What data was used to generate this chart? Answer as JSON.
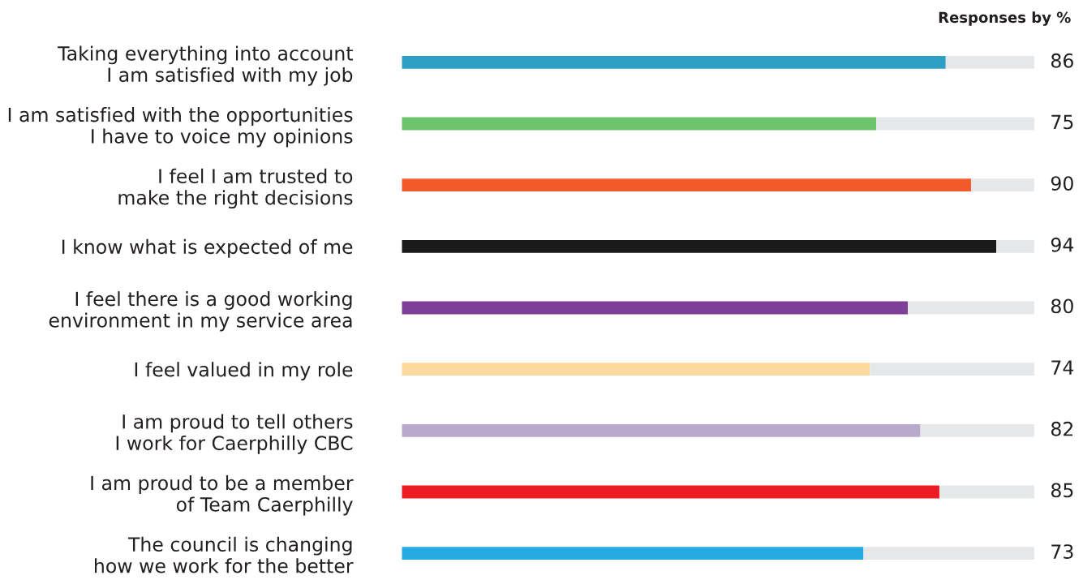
{
  "chart_data": {
    "type": "bar",
    "orientation": "horizontal",
    "stacked": true,
    "title": "Responses by %",
    "categories": [
      "Taking everything into account\nI am satisfied with my job",
      "I am satisfied with the opportunities\nI have to voice my opinions",
      "I feel I am trusted to\nmake the right decisions",
      "I know what is expected of me",
      "I feel there is a good working\nenvironment in my service area",
      "I feel valued in my role",
      "I am proud to tell others\nI work for Caerphilly CBC",
      "I am proud to be a member\nof Team Caerphilly",
      "The council is changing\nhow we work for the better"
    ],
    "series": [
      {
        "values": [
          86,
          75,
          90,
          94,
          80,
          74,
          82,
          85,
          73
        ],
        "colors": [
          "#2e9fc4",
          "#6cc36c",
          "#f15a29",
          "#1a1a1a",
          "#7f3f98",
          "#fdd89f",
          "#b9a9cc",
          "#ed1c24",
          "#27aae1"
        ],
        "value_labels": [
          "86",
          "75",
          "90",
          "94",
          "80",
          "74",
          "82",
          "85",
          "73"
        ]
      },
      {
        "values": [
          14,
          25,
          10,
          6,
          20,
          26,
          18,
          15,
          27
        ],
        "color": "#e6e7e8"
      }
    ]
  }
}
